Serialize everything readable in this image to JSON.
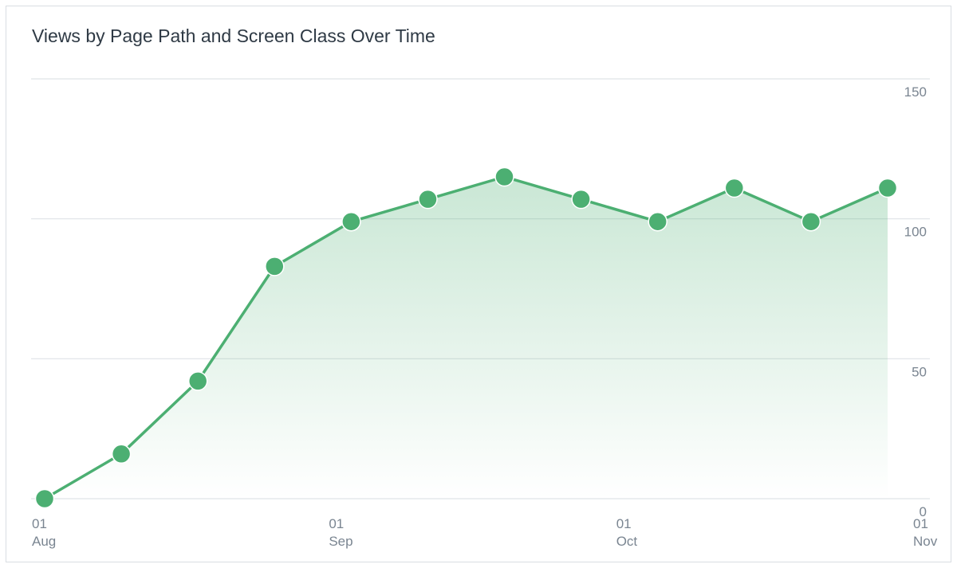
{
  "chart_data": {
    "type": "area",
    "title": "Views by Page Path and Screen Class Over Time",
    "x_ticks": [
      {
        "day": "01",
        "month": "Aug",
        "date": "2024-08-01"
      },
      {
        "day": "01",
        "month": "Sep",
        "date": "2024-09-01"
      },
      {
        "day": "01",
        "month": "Oct",
        "date": "2024-10-01"
      },
      {
        "day": "01",
        "month": "Nov",
        "date": "2024-11-01"
      }
    ],
    "y_ticks": [
      0,
      50,
      100,
      150
    ],
    "ylim": [
      0,
      150
    ],
    "y_axis_position": "right",
    "grid": true,
    "color": "#4caf72",
    "points": [
      {
        "x": "2024-08-01",
        "y": 0
      },
      {
        "x": "2024-08-09",
        "y": 16
      },
      {
        "x": "2024-08-17",
        "y": 42
      },
      {
        "x": "2024-08-25",
        "y": 83
      },
      {
        "x": "2024-09-02",
        "y": 99
      },
      {
        "x": "2024-09-10",
        "y": 107
      },
      {
        "x": "2024-09-18",
        "y": 115
      },
      {
        "x": "2024-09-26",
        "y": 107
      },
      {
        "x": "2024-10-04",
        "y": 99
      },
      {
        "x": "2024-10-12",
        "y": 111
      },
      {
        "x": "2024-10-20",
        "y": 99
      },
      {
        "x": "2024-10-28",
        "y": 111
      }
    ]
  }
}
